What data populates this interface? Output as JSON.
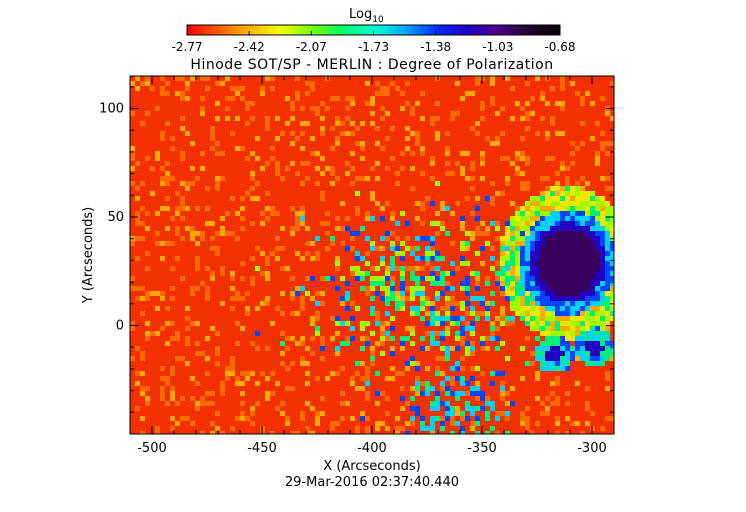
{
  "chart_data": {
    "type": "heatmap",
    "title": "Hinode SOT/SP - MERLIN : Degree of Polarization",
    "xlabel": "X (Arcseconds)",
    "ylabel": "Y (Arcseconds)",
    "xlim": [
      -510,
      -290
    ],
    "ylim": [
      -50,
      115
    ],
    "x_ticks": [
      -500,
      -450,
      -400,
      -350,
      -300
    ],
    "y_ticks": [
      100,
      50,
      0
    ],
    "x_tick_labels": [
      "-500",
      "-450",
      "-400",
      "-350",
      "-300"
    ],
    "y_tick_labels": [
      "100",
      "50",
      "0"
    ],
    "colorbar": {
      "label": "Log",
      "label_sub": "10",
      "range": [
        -2.77,
        -0.68
      ],
      "tick_labels": [
        "-2.77",
        "-2.42",
        "-2.07",
        "-1.73",
        "-1.38",
        "-1.03",
        "-0.68"
      ],
      "colors": [
        "#ff0000",
        "#ff5a00",
        "#ffb400",
        "#f0ff00",
        "#7dff00",
        "#00ff64",
        "#00ffd2",
        "#00aaff",
        "#0032ff",
        "#1e00c8",
        "#500090",
        "#200030",
        "#000000"
      ]
    },
    "grid": false,
    "features": {
      "sunspot_umbra": {
        "x": -312,
        "y": 30,
        "log_value": -0.75
      },
      "small_pores": [
        {
          "x": -318,
          "y": -12
        },
        {
          "x": -300,
          "y": -9
        }
      ]
    },
    "date": "29-Mar-2016 02:37:40.440"
  }
}
